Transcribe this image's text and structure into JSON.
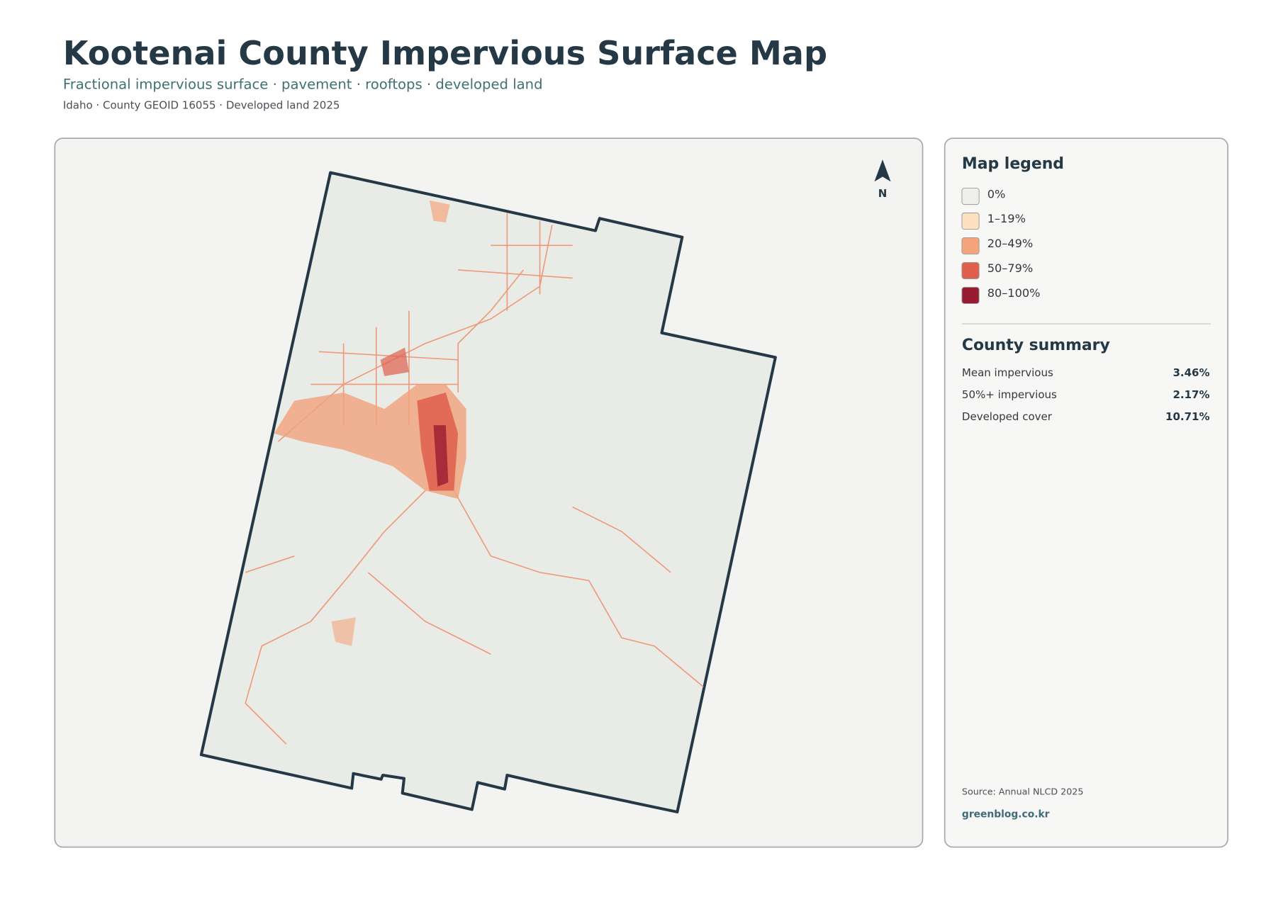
{
  "header": {
    "title": "Kootenai County Impervious Surface Map",
    "subtitle": "Fractional impervious surface · pavement · rooftops · developed land",
    "meta": "Idaho · County GEOID 16055 · Developed land 2025"
  },
  "map": {
    "north_label": "N"
  },
  "legend": {
    "title": "Map legend",
    "items": [
      {
        "label": "0%",
        "color": "#eeeeea"
      },
      {
        "label": "1–19%",
        "color": "#fde0c0"
      },
      {
        "label": "20–49%",
        "color": "#f4a57c"
      },
      {
        "label": "50–79%",
        "color": "#df5f4d"
      },
      {
        "label": "80–100%",
        "color": "#991b32"
      }
    ]
  },
  "summary": {
    "title": "County summary",
    "rows": [
      {
        "label": "Mean impervious",
        "value": "3.46%"
      },
      {
        "label": "50%+ impervious",
        "value": "2.17%"
      },
      {
        "label": "Developed cover",
        "value": "10.71%"
      }
    ]
  },
  "footer": {
    "source": "Source: Annual NLCD 2025",
    "site": "greenblog.co.kr"
  }
}
